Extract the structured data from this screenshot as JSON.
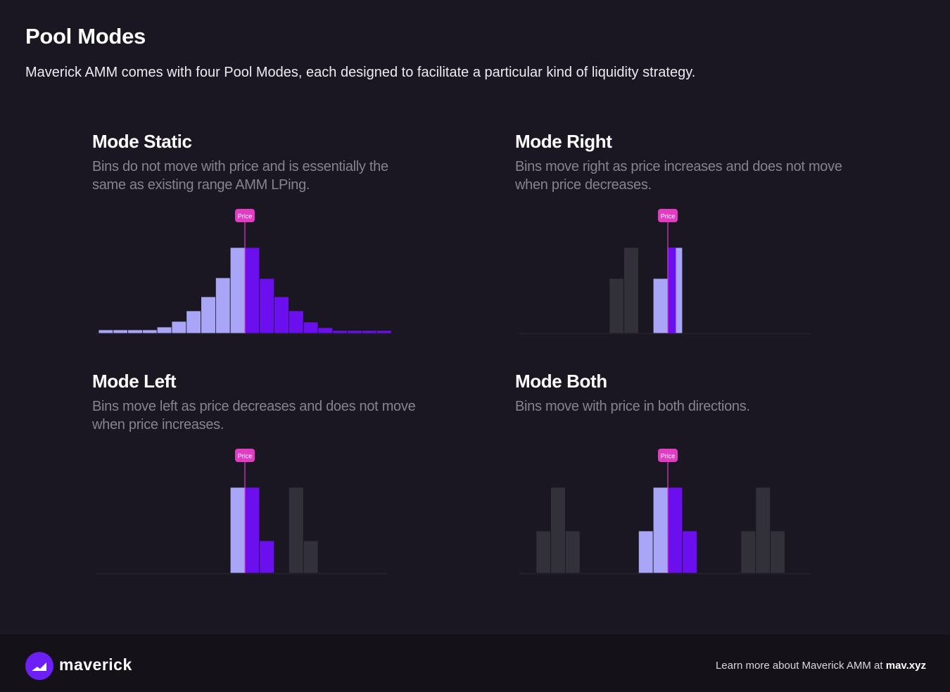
{
  "header": {
    "title": "Pool Modes",
    "subtitle": "Maverick AMM comes with four Pool Modes, each designed to facilitate a particular kind of liquidity strategy."
  },
  "colors": {
    "background": "#1b1722",
    "footer": "#141119",
    "bin_left_of_price": "#aaa6f7",
    "bin_right_of_price": "#6c0fef",
    "bin_inactive": "#323038",
    "price_marker": "#e23bc4",
    "description_text": "#86838d"
  },
  "modes": [
    {
      "id": "static",
      "title": "Mode Static",
      "description": "Bins do not move with price and is essentially the same as existing range AMM LPing.",
      "price_label": "Price",
      "price_index": 10,
      "bins": [
        {
          "h": 5,
          "kind": "left"
        },
        {
          "h": 5,
          "kind": "left"
        },
        {
          "h": 5,
          "kind": "left"
        },
        {
          "h": 5,
          "kind": "left"
        },
        {
          "h": 9,
          "kind": "left"
        },
        {
          "h": 17,
          "kind": "left"
        },
        {
          "h": 32,
          "kind": "left"
        },
        {
          "h": 52,
          "kind": "left"
        },
        {
          "h": 79,
          "kind": "left"
        },
        {
          "h": 122,
          "kind": "left"
        },
        {
          "h": 122,
          "kind": "right"
        },
        {
          "h": 78,
          "kind": "right"
        },
        {
          "h": 52,
          "kind": "right"
        },
        {
          "h": 32,
          "kind": "right"
        },
        {
          "h": 16,
          "kind": "right"
        },
        {
          "h": 8,
          "kind": "right"
        },
        {
          "h": 4,
          "kind": "right"
        },
        {
          "h": 4,
          "kind": "right"
        },
        {
          "h": 4,
          "kind": "right"
        },
        {
          "h": 4,
          "kind": "right"
        }
      ]
    },
    {
      "id": "right",
      "title": "Mode Right",
      "description": "Bins move right as price increases and does not move when price decreases.",
      "price_label": "Price",
      "price_index": 10,
      "bins": [
        {
          "h": 0,
          "kind": "none"
        },
        {
          "h": 0,
          "kind": "none"
        },
        {
          "h": 0,
          "kind": "none"
        },
        {
          "h": 0,
          "kind": "none"
        },
        {
          "h": 0,
          "kind": "none"
        },
        {
          "h": 0,
          "kind": "none"
        },
        {
          "h": 78,
          "kind": "inactive"
        },
        {
          "h": 122,
          "kind": "inactive"
        },
        {
          "h": 0,
          "kind": "none"
        },
        {
          "h": 78,
          "kind": "left"
        },
        {
          "h": 122,
          "kind": "left"
        },
        {
          "h": 0,
          "kind": "none"
        },
        {
          "h": 0,
          "kind": "none"
        },
        {
          "h": 0,
          "kind": "none"
        },
        {
          "h": 0,
          "kind": "none"
        },
        {
          "h": 0,
          "kind": "none"
        },
        {
          "h": 0,
          "kind": "none"
        },
        {
          "h": 0,
          "kind": "none"
        },
        {
          "h": 0,
          "kind": "none"
        },
        {
          "h": 0,
          "kind": "none"
        }
      ],
      "price_bin": {
        "h": 122,
        "kind": "right"
      }
    },
    {
      "id": "left",
      "title": "Mode Left",
      "description": "Bins move left as price decreases and does not move when price increases.",
      "price_label": "Price",
      "price_index": 10,
      "bins": [
        {
          "h": 0,
          "kind": "none"
        },
        {
          "h": 0,
          "kind": "none"
        },
        {
          "h": 0,
          "kind": "none"
        },
        {
          "h": 0,
          "kind": "none"
        },
        {
          "h": 0,
          "kind": "none"
        },
        {
          "h": 0,
          "kind": "none"
        },
        {
          "h": 0,
          "kind": "none"
        },
        {
          "h": 0,
          "kind": "none"
        },
        {
          "h": 0,
          "kind": "none"
        },
        {
          "h": 122,
          "kind": "left"
        },
        {
          "h": 122,
          "kind": "right"
        },
        {
          "h": 46,
          "kind": "right"
        },
        {
          "h": 0,
          "kind": "none"
        },
        {
          "h": 122,
          "kind": "inactive"
        },
        {
          "h": 46,
          "kind": "inactive"
        },
        {
          "h": 0,
          "kind": "none"
        },
        {
          "h": 0,
          "kind": "none"
        },
        {
          "h": 0,
          "kind": "none"
        },
        {
          "h": 0,
          "kind": "none"
        },
        {
          "h": 0,
          "kind": "none"
        }
      ]
    },
    {
      "id": "both",
      "title": "Mode Both",
      "description": "Bins move with price in both directions.",
      "price_label": "Price",
      "price_index": 10,
      "bins": [
        {
          "h": 0,
          "kind": "none"
        },
        {
          "h": 60,
          "kind": "inactive"
        },
        {
          "h": 122,
          "kind": "inactive"
        },
        {
          "h": 60,
          "kind": "inactive"
        },
        {
          "h": 0,
          "kind": "none"
        },
        {
          "h": 0,
          "kind": "none"
        },
        {
          "h": 0,
          "kind": "none"
        },
        {
          "h": 0,
          "kind": "none"
        },
        {
          "h": 60,
          "kind": "left"
        },
        {
          "h": 122,
          "kind": "left"
        },
        {
          "h": 122,
          "kind": "right"
        },
        {
          "h": 60,
          "kind": "right"
        },
        {
          "h": 0,
          "kind": "none"
        },
        {
          "h": 0,
          "kind": "none"
        },
        {
          "h": 0,
          "kind": "none"
        },
        {
          "h": 60,
          "kind": "inactive"
        },
        {
          "h": 122,
          "kind": "inactive"
        },
        {
          "h": 60,
          "kind": "inactive"
        },
        {
          "h": 0,
          "kind": "none"
        },
        {
          "h": 0,
          "kind": "none"
        }
      ]
    }
  ],
  "footer": {
    "brand": "maverick",
    "learn_more_prefix": "Learn more about Maverick AMM at",
    "learn_more_link": "mav.xyz",
    "icon": "maverick-logo-icon"
  }
}
